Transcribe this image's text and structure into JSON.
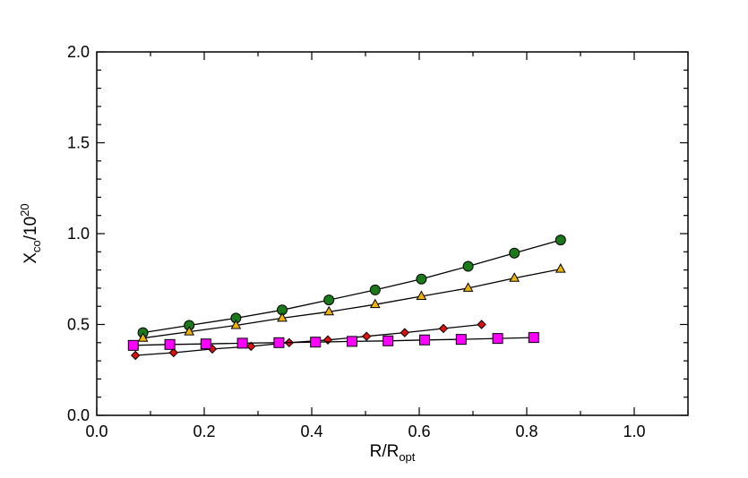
{
  "chart_data": {
    "type": "scatter",
    "xlim": [
      0.0,
      1.1
    ],
    "ylim": [
      0.0,
      2.0
    ],
    "xticks": [
      "0.0",
      "0.2",
      "0.4",
      "0.6",
      "0.8",
      "1.0"
    ],
    "yticks": [
      "0.0",
      "0.5",
      "1.0",
      "1.5",
      "2.0"
    ],
    "xlabel": {
      "main": "R/R",
      "sub": "opt"
    },
    "ylabel": {
      "main": "X",
      "sub": "co",
      "tail": "/10",
      "sup": "20"
    },
    "grid": false,
    "legend": "none",
    "series": [
      {
        "marker": "circle",
        "color": "#1a7a1a",
        "x": [
          0.086,
          0.172,
          0.259,
          0.345,
          0.432,
          0.518,
          0.604,
          0.691,
          0.777,
          0.863
        ],
        "y": [
          0.455,
          0.495,
          0.535,
          0.58,
          0.635,
          0.69,
          0.75,
          0.82,
          0.893,
          0.965
        ]
      },
      {
        "marker": "triangle",
        "color": "#f0b400",
        "x": [
          0.086,
          0.172,
          0.259,
          0.345,
          0.432,
          0.518,
          0.604,
          0.691,
          0.777,
          0.863
        ],
        "y": [
          0.425,
          0.46,
          0.495,
          0.535,
          0.57,
          0.61,
          0.655,
          0.7,
          0.755,
          0.805
        ]
      },
      {
        "marker": "diamond",
        "color": "#e01010",
        "x": [
          0.072,
          0.143,
          0.215,
          0.287,
          0.358,
          0.43,
          0.502,
          0.573,
          0.645,
          0.716
        ],
        "y": [
          0.33,
          0.345,
          0.365,
          0.38,
          0.4,
          0.415,
          0.435,
          0.455,
          0.478,
          0.5
        ]
      },
      {
        "marker": "square",
        "color": "#ff00ff",
        "x": [
          0.068,
          0.136,
          0.203,
          0.271,
          0.339,
          0.407,
          0.475,
          0.542,
          0.61,
          0.678,
          0.746,
          0.813
        ],
        "y": [
          0.385,
          0.39,
          0.393,
          0.397,
          0.4,
          0.403,
          0.407,
          0.41,
          0.415,
          0.418,
          0.423,
          0.428
        ]
      }
    ]
  }
}
